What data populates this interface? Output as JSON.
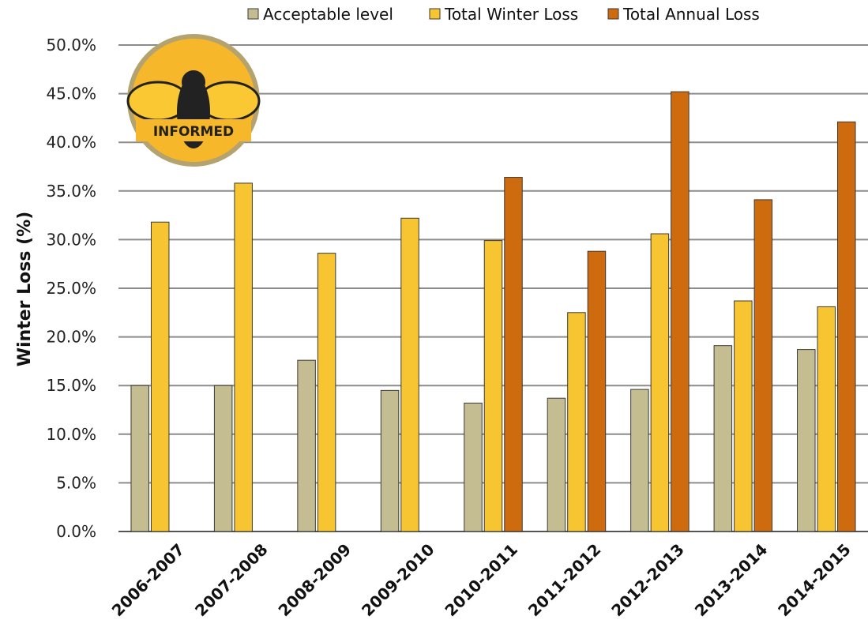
{
  "chart_data": {
    "type": "bar",
    "title": "",
    "xlabel": "",
    "ylabel": "Winter Loss (%)",
    "ylim": [
      0,
      50
    ],
    "ytick_step": 5,
    "ytick_format": "percent_1dp",
    "grid": true,
    "legend_position": "top",
    "categories": [
      "2006-2007",
      "2007-2008",
      "2008-2009",
      "2009-2010",
      "2010-2011",
      "2011-2012",
      "2012-2013",
      "2013-2014",
      "2014-2015"
    ],
    "series": [
      {
        "name": "Acceptable level",
        "color": "#c5bd92",
        "values": [
          15.0,
          15.0,
          17.6,
          14.5,
          13.2,
          13.7,
          14.6,
          19.1,
          18.7
        ]
      },
      {
        "name": "Total Winter Loss",
        "color": "#f7c531",
        "values": [
          31.8,
          35.8,
          28.6,
          32.2,
          29.9,
          22.5,
          30.6,
          23.7,
          23.1
        ]
      },
      {
        "name": "Total Annual Loss",
        "color": "#cd6b0e",
        "values": [
          null,
          null,
          null,
          null,
          36.4,
          28.8,
          45.2,
          34.1,
          42.1
        ]
      }
    ]
  },
  "logo": {
    "line1": "BEE",
    "line2": "INFORMED",
    "colors": {
      "disc": "#f7b72a",
      "ring": "#b5a36f",
      "wing": "#f9c832",
      "body": "#222222"
    }
  }
}
